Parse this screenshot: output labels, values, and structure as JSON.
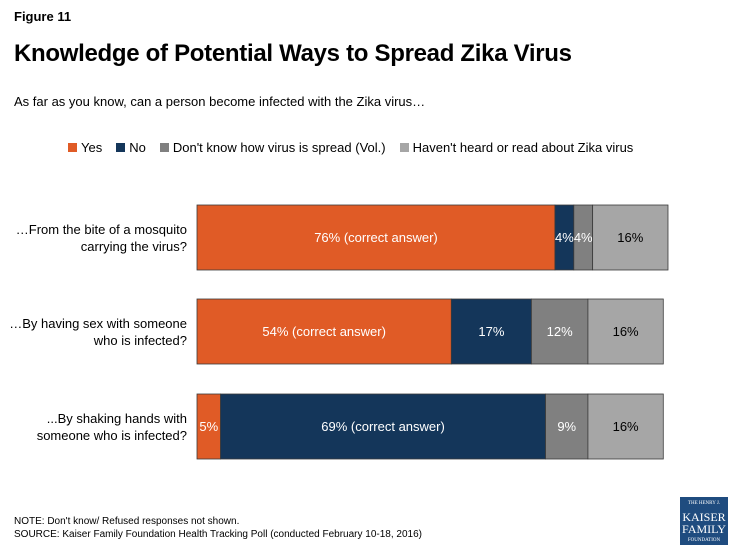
{
  "figure_label": "Figure 11",
  "chart_data": {
    "type": "bar",
    "orientation": "horizontal",
    "stacked": true,
    "title": "Knowledge of Potential Ways to Spread Zika Virus",
    "subtitle": "As far as you know, can a person become infected with the Zika virus…",
    "categories": [
      "…From the bite of a mosquito carrying the virus?",
      "…By having sex with someone who is infected?",
      "...By shaking hands with someone who is infected?"
    ],
    "category_lines": [
      [
        "…From the bite of a mosquito",
        "carrying the virus?"
      ],
      [
        "…By having sex with someone",
        "who is infected?"
      ],
      [
        "...By shaking hands with",
        "someone who is infected?"
      ]
    ],
    "series": [
      {
        "name": "Yes",
        "color": "#E05B26",
        "values": [
          76,
          54,
          5
        ],
        "labels": [
          "76% (correct answer)",
          "54% (correct answer)",
          "5%"
        ],
        "label_color": "#ffffff"
      },
      {
        "name": "No",
        "color": "#14365A",
        "values": [
          4,
          17,
          69
        ],
        "labels": [
          "4%",
          "17%",
          "69% (correct answer)"
        ],
        "label_color": "#ffffff"
      },
      {
        "name": "Don't know how virus is spread (Vol.)",
        "color": "#808080",
        "values": [
          4,
          12,
          9
        ],
        "labels": [
          "4%",
          "12%",
          "9%"
        ],
        "label_color": "#ffffff"
      },
      {
        "name": "Haven't heard or read about Zika virus",
        "color": "#A6A6A6",
        "values": [
          16,
          16,
          16
        ],
        "labels": [
          "16%",
          "16%",
          "16%"
        ],
        "label_color": "#000000"
      }
    ],
    "xlim": [
      0,
      100
    ],
    "grid": false,
    "legend_position": "top"
  },
  "notes": {
    "note": "NOTE: Don't know/ Refused responses not shown.",
    "source": "SOURCE: Kaiser Family Foundation Health Tracking Poll (conducted February 10-18, 2016)"
  },
  "logo": {
    "line1": "THE HENRY J.",
    "line2": "KAISER",
    "line3": "FAMILY",
    "line4": "FOUNDATION"
  }
}
